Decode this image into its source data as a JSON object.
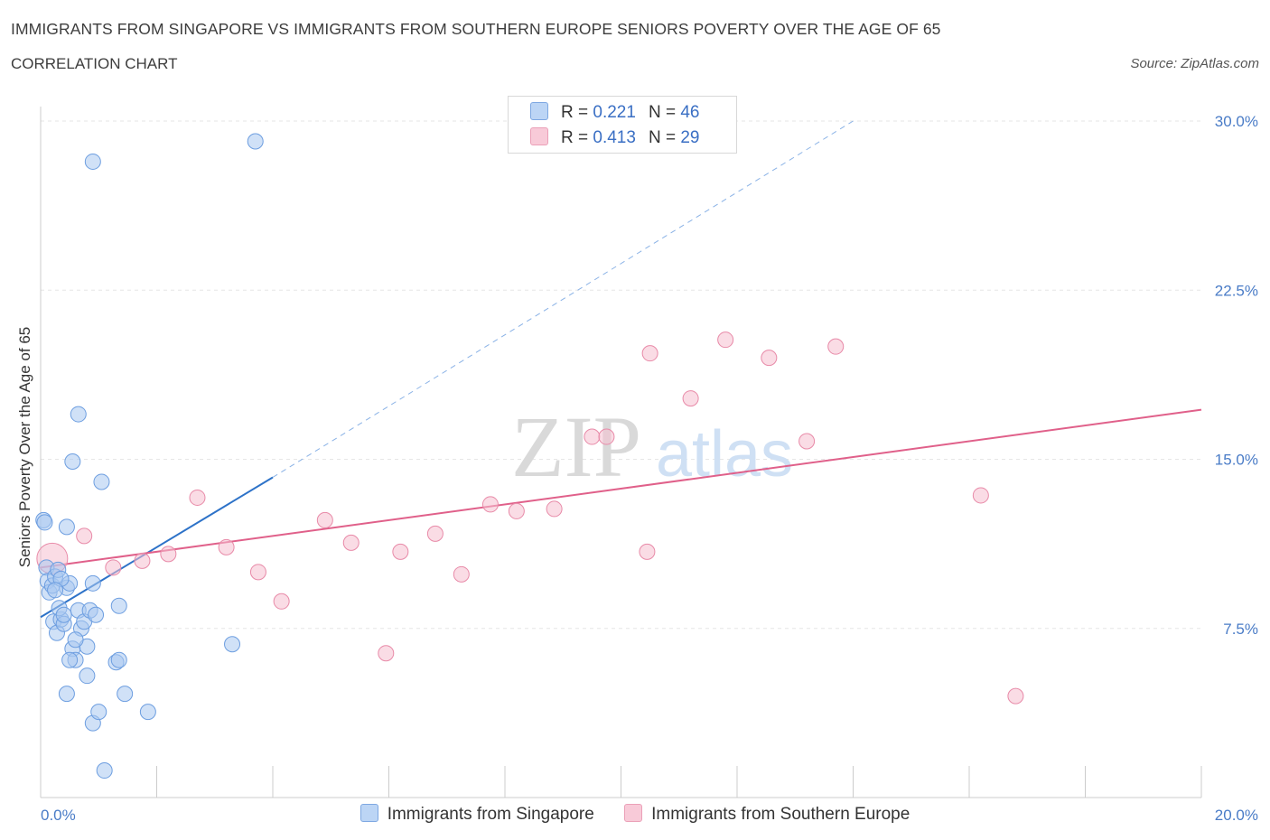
{
  "title": "IMMIGRANTS FROM SINGAPORE VS IMMIGRANTS FROM SOUTHERN EUROPE SENIORS POVERTY OVER THE AGE OF 65",
  "subtitle": "CORRELATION CHART",
  "source": "Source: ZipAtlas.com",
  "watermark": {
    "zip": "ZIP",
    "atlas": "atlas"
  },
  "legend": {
    "r_label": "R =",
    "n_label": "N =",
    "series": [
      {
        "name": "Immigrants from Singapore",
        "r": "0.221",
        "n": "46"
      },
      {
        "name": "Immigrants from Southern Europe",
        "r": "0.413",
        "n": "29"
      }
    ]
  },
  "colors": {
    "blue_fill": "#a9c8f0",
    "blue_stroke": "#6d9ee0",
    "blue_line": "#2d72c8",
    "pink_fill": "#f6c0d0",
    "pink_stroke": "#e88aa8",
    "pink_line": "#e0608a",
    "grid": "#e6e6e6",
    "axis_text": "#4a7cc7"
  },
  "chart_data": {
    "type": "scatter",
    "title": "IMMIGRANTS FROM SINGAPORE VS IMMIGRANTS FROM SOUTHERN EUROPE SENIORS POVERTY OVER THE AGE OF 65",
    "xlabel": "",
    "ylabel": "Seniors Poverty Over the Age of 65",
    "xlim": [
      0,
      20
    ],
    "ylim": [
      0,
      30
    ],
    "x_tick_labels": [
      "0.0%",
      "20.0%"
    ],
    "y_ticks": [
      7.5,
      15,
      22.5,
      30
    ],
    "y_tick_labels": [
      "7.5%",
      "15.0%",
      "22.5%",
      "30.0%"
    ],
    "grid": true,
    "series": [
      {
        "name": "Immigrants from Singapore",
        "r": 0.221,
        "n": 46,
        "points": [
          [
            0.05,
            12.3
          ],
          [
            0.07,
            12.2
          ],
          [
            0.1,
            10.2
          ],
          [
            0.12,
            9.6
          ],
          [
            0.15,
            9.1
          ],
          [
            0.2,
            9.4
          ],
          [
            0.25,
            9.8
          ],
          [
            0.3,
            10.1
          ],
          [
            0.22,
            7.8
          ],
          [
            0.28,
            7.3
          ],
          [
            0.35,
            7.9
          ],
          [
            0.32,
            8.4
          ],
          [
            0.4,
            7.7
          ],
          [
            0.45,
            9.3
          ],
          [
            0.5,
            9.5
          ],
          [
            0.55,
            6.6
          ],
          [
            0.6,
            6.1
          ],
          [
            0.65,
            8.3
          ],
          [
            0.7,
            7.5
          ],
          [
            0.75,
            7.8
          ],
          [
            0.8,
            6.7
          ],
          [
            0.85,
            8.3
          ],
          [
            0.9,
            9.5
          ],
          [
            0.95,
            8.1
          ],
          [
            0.5,
            6.1
          ],
          [
            0.8,
            5.4
          ],
          [
            0.45,
            4.6
          ],
          [
            0.9,
            3.3
          ],
          [
            1.0,
            3.8
          ],
          [
            1.1,
            1.2
          ],
          [
            1.3,
            6.0
          ],
          [
            1.35,
            6.1
          ],
          [
            1.35,
            8.5
          ],
          [
            1.45,
            4.6
          ],
          [
            1.85,
            3.8
          ],
          [
            0.45,
            12.0
          ],
          [
            0.55,
            14.9
          ],
          [
            0.65,
            17.0
          ],
          [
            1.05,
            14.0
          ],
          [
            0.9,
            28.2
          ],
          [
            3.3,
            6.8
          ],
          [
            3.7,
            29.1
          ],
          [
            0.35,
            9.7
          ],
          [
            0.6,
            7.0
          ],
          [
            0.25,
            9.2
          ],
          [
            0.4,
            8.1
          ]
        ],
        "trend": {
          "x0": 0,
          "y0": 8.0,
          "x1": 4.0,
          "y1": 14.2,
          "dashed_to_x": 14.0,
          "dashed_to_y": 30.0
        }
      },
      {
        "name": "Immigrants from Southern Europe",
        "r": 0.413,
        "n": 29,
        "points": [
          [
            0.2,
            10.6
          ],
          [
            0.75,
            11.6
          ],
          [
            1.25,
            10.2
          ],
          [
            1.75,
            10.5
          ],
          [
            2.2,
            10.8
          ],
          [
            2.7,
            13.3
          ],
          [
            3.2,
            11.1
          ],
          [
            3.75,
            10.0
          ],
          [
            4.15,
            8.7
          ],
          [
            4.9,
            12.3
          ],
          [
            5.35,
            11.3
          ],
          [
            5.95,
            6.4
          ],
          [
            6.2,
            10.9
          ],
          [
            6.8,
            11.7
          ],
          [
            7.25,
            9.9
          ],
          [
            7.75,
            13.0
          ],
          [
            8.2,
            12.7
          ],
          [
            8.85,
            12.8
          ],
          [
            9.5,
            16.0
          ],
          [
            9.75,
            16.0
          ],
          [
            10.45,
            10.9
          ],
          [
            10.5,
            19.7
          ],
          [
            11.2,
            17.7
          ],
          [
            11.8,
            20.3
          ],
          [
            12.55,
            19.5
          ],
          [
            13.2,
            15.8
          ],
          [
            13.7,
            20.0
          ],
          [
            16.2,
            13.4
          ],
          [
            16.8,
            4.5
          ]
        ],
        "trend": {
          "x0": 0,
          "y0": 10.2,
          "x1": 20.0,
          "y1": 17.2
        }
      }
    ]
  }
}
